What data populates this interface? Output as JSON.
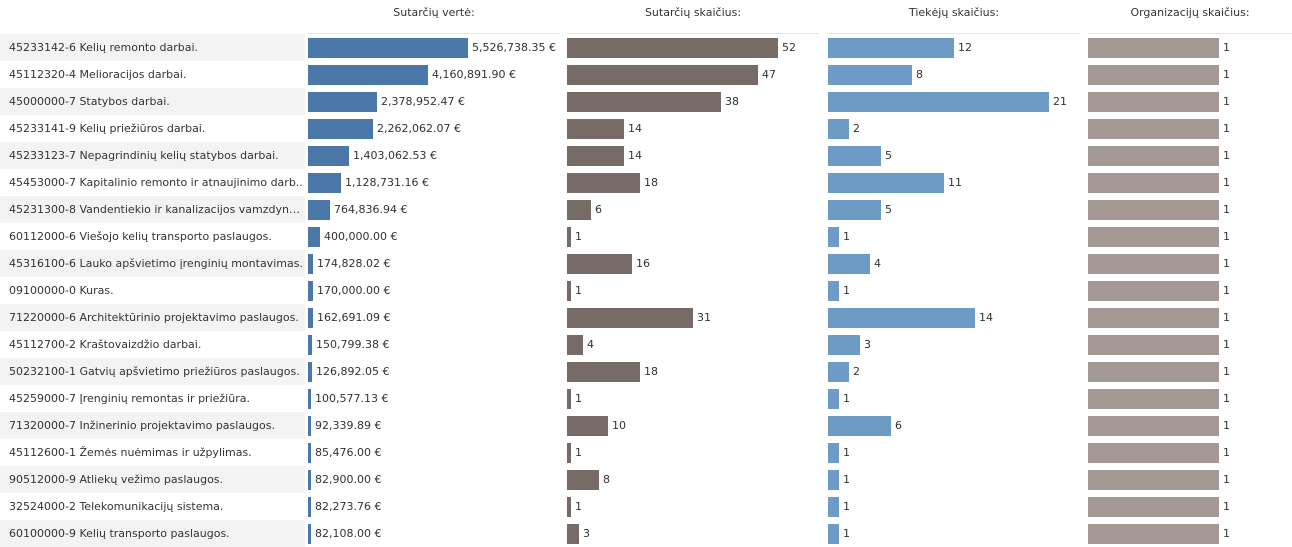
{
  "colors": {
    "value": "#4a77a8",
    "contracts": "#776b68",
    "suppliers": "#6d9bc6",
    "organizations": "#a49894"
  },
  "chart_data": {
    "type": "bar",
    "orientation": "horizontal",
    "categories": [
      "45233142-6 Kelių remonto darbai.",
      "45112320-4 Melioracijos darbai.",
      "45000000-7 Statybos darbai.",
      "45233141-9 Kelių priežiūros darbai.",
      "45233123-7 Nepagrindinių kelių statybos darbai.",
      "45453000-7 Kapitalinio remonto ir atnaujinimo darb..",
      "45231300-8 Vandentiekio ir kanalizacijos vamzdynų ..",
      "60112000-6 Viešojo kelių transporto paslaugos.",
      "45316100-6 Lauko apšvietimo įrenginių montavimas.",
      "09100000-0 Kuras.",
      "71220000-6 Architektūrinio projektavimo paslaugos.",
      "45112700-2 Kraštovaizdžio darbai.",
      "50232100-1 Gatvių apšvietimo priežiūros paslaugos.",
      "45259000-7 Įrenginių remontas ir priežiūra.",
      "71320000-7 Inžinerinio projektavimo paslaugos.",
      "45112600-1 Žemės nuėmimas ir užpylimas.",
      "90512000-9 Atliekų vežimo paslaugos.",
      "32524000-2 Telekomunikacijų sistema.",
      "60100000-9 Kelių transporto paslaugos."
    ],
    "series": [
      {
        "name": "Sutarčių vertė:",
        "color_key": "value",
        "values": [
          5526738.35,
          4160891.9,
          2378952.47,
          2262062.07,
          1403062.53,
          1128731.16,
          764836.94,
          400000.0,
          174828.02,
          170000.0,
          162691.09,
          150799.38,
          126892.05,
          100577.13,
          92339.89,
          85476.0,
          82900.0,
          82273.76,
          82108.0
        ],
        "labels": [
          "5,526,738.35 €",
          "4,160,891.90 €",
          "2,378,952.47 €",
          "2,262,062.07 €",
          "1,403,062.53 €",
          "1,128,731.16 €",
          "764,836.94 €",
          "400,000.00 €",
          "174,828.02 €",
          "170,000.00 €",
          "162,691.09 €",
          "150,799.38 €",
          "126,892.05 €",
          "100,577.13 €",
          "92,339.89 €",
          "85,476.00 €",
          "82,900.00 €",
          "82,273.76 €",
          "82,108.00 €"
        ],
        "xlim": [
          0,
          5526738.35
        ]
      },
      {
        "name": "Sutarčių skaičius:",
        "color_key": "contracts",
        "values": [
          52,
          47,
          38,
          14,
          14,
          18,
          6,
          1,
          16,
          1,
          31,
          4,
          18,
          1,
          10,
          1,
          8,
          1,
          3
        ],
        "labels": [
          "52",
          "47",
          "38",
          "14",
          "14",
          "18",
          "6",
          "1",
          "16",
          "1",
          "31",
          "4",
          "18",
          "1",
          "10",
          "1",
          "8",
          "1",
          "3"
        ],
        "xlim": [
          0,
          52
        ]
      },
      {
        "name": "Tiekėjų skaičius:",
        "color_key": "suppliers",
        "values": [
          12,
          8,
          21,
          2,
          5,
          11,
          5,
          1,
          4,
          1,
          14,
          3,
          2,
          1,
          6,
          1,
          1,
          1,
          1
        ],
        "labels": [
          "12",
          "8",
          "21",
          "2",
          "5",
          "11",
          "5",
          "1",
          "4",
          "1",
          "14",
          "3",
          "2",
          "1",
          "6",
          "1",
          "1",
          "1",
          "1"
        ],
        "xlim": [
          0,
          21
        ]
      },
      {
        "name": "Organizacijų skaičius:",
        "color_key": "organizations",
        "values": [
          1,
          1,
          1,
          1,
          1,
          1,
          1,
          1,
          1,
          1,
          1,
          1,
          1,
          1,
          1,
          1,
          1,
          1,
          1
        ],
        "labels": [
          "1",
          "1",
          "1",
          "1",
          "1",
          "1",
          "1",
          "1",
          "1",
          "1",
          "1",
          "1",
          "1",
          "1",
          "1",
          "1",
          "1",
          "1",
          "1"
        ],
        "xlim": [
          0,
          1
        ]
      }
    ],
    "grid": false,
    "legend": "none"
  }
}
